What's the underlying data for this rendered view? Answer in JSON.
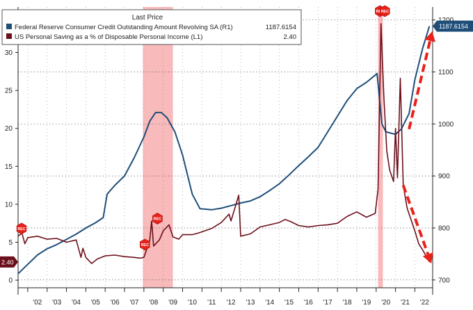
{
  "chart_data": {
    "type": "line",
    "legend": {
      "header": "Last Price",
      "placement": "top-left",
      "entries": [
        {
          "label": "Federal Reserve Consumer Credit Outstanding Amount Revolving SA  (R1)",
          "value": "1187.6154",
          "color": "#1f4e79"
        },
        {
          "label": "US Personal Saving as a % of Disposable Personal Income  (L1)",
          "value": "2.40",
          "color": "#6b0f1a"
        }
      ]
    },
    "x_ticks": [
      "'02",
      "'03",
      "'04",
      "'05",
      "'06",
      "'07",
      "'08",
      "'09",
      "'10",
      "'11",
      "'12",
      "'13",
      "'14",
      "'15",
      "'16",
      "'17",
      "'18",
      "'19",
      "'20",
      "'21",
      "'22"
    ],
    "x_range": [
      2001.5,
      2022.92
    ],
    "left_axis": {
      "ticks": [
        "0",
        "5",
        "10",
        "15",
        "20",
        "25",
        "30",
        "35"
      ],
      "range": [
        -1,
        36
      ]
    },
    "right_axis": {
      "ticks": [
        "700",
        "800",
        "900",
        "1000",
        "1100",
        "1200"
      ],
      "range": [
        685,
        1225
      ]
    },
    "recessions": [
      [
        2007.95,
        2009.5
      ],
      [
        2020.1,
        2020.35
      ]
    ],
    "rec_marker_label": "REC",
    "series": [
      {
        "name": "Federal Reserve Consumer Credit Outstanding Amount Revolving SA",
        "axis": "right",
        "color": "#1f4e79",
        "last_value_label": "1187.6154",
        "points": [
          [
            2001.5,
            712
          ],
          [
            2002.0,
            730
          ],
          [
            2002.5,
            748
          ],
          [
            2003.0,
            760
          ],
          [
            2003.5,
            768
          ],
          [
            2004.0,
            778
          ],
          [
            2004.5,
            788
          ],
          [
            2005.0,
            800
          ],
          [
            2005.5,
            810
          ],
          [
            2005.9,
            820
          ],
          [
            2006.1,
            865
          ],
          [
            2006.5,
            882
          ],
          [
            2007.0,
            900
          ],
          [
            2007.5,
            935
          ],
          [
            2008.0,
            975
          ],
          [
            2008.3,
            1005
          ],
          [
            2008.6,
            1022
          ],
          [
            2008.9,
            1022
          ],
          [
            2009.2,
            1012
          ],
          [
            2009.6,
            985
          ],
          [
            2010.0,
            940
          ],
          [
            2010.5,
            865
          ],
          [
            2010.9,
            837
          ],
          [
            2011.5,
            835
          ],
          [
            2012.0,
            838
          ],
          [
            2012.5,
            843
          ],
          [
            2013.0,
            848
          ],
          [
            2013.5,
            852
          ],
          [
            2014.0,
            860
          ],
          [
            2014.5,
            872
          ],
          [
            2015.0,
            885
          ],
          [
            2015.5,
            902
          ],
          [
            2016.0,
            920
          ],
          [
            2016.5,
            937
          ],
          [
            2017.0,
            955
          ],
          [
            2017.5,
            985
          ],
          [
            2018.0,
            1015
          ],
          [
            2018.5,
            1045
          ],
          [
            2019.0,
            1068
          ],
          [
            2019.5,
            1080
          ],
          [
            2020.05,
            1097
          ],
          [
            2020.3,
            1000
          ],
          [
            2020.5,
            985
          ],
          [
            2021.0,
            980
          ],
          [
            2021.3,
            990
          ],
          [
            2021.7,
            1020
          ],
          [
            2022.0,
            1085
          ],
          [
            2022.4,
            1145
          ],
          [
            2022.75,
            1188
          ]
        ]
      },
      {
        "name": "US Personal Saving as a % of Disposable Personal Income",
        "axis": "left",
        "color": "#6b0f1a",
        "last_value_label": "2.40",
        "points": [
          [
            2001.5,
            5.8
          ],
          [
            2001.7,
            6.2
          ],
          [
            2001.85,
            4.8
          ],
          [
            2002.0,
            5.6
          ],
          [
            2002.5,
            5.8
          ],
          [
            2003.0,
            5.4
          ],
          [
            2003.5,
            5.5
          ],
          [
            2004.0,
            5.0
          ],
          [
            2004.5,
            5.3
          ],
          [
            2004.75,
            3.0
          ],
          [
            2004.85,
            4.2
          ],
          [
            2005.0,
            3.0
          ],
          [
            2005.3,
            2.2
          ],
          [
            2005.6,
            2.8
          ],
          [
            2006.0,
            3.2
          ],
          [
            2006.5,
            3.3
          ],
          [
            2007.0,
            3.1
          ],
          [
            2007.5,
            3.0
          ],
          [
            2007.8,
            2.9
          ],
          [
            2008.0,
            3.0
          ],
          [
            2008.3,
            5.2
          ],
          [
            2008.4,
            7.8
          ],
          [
            2008.5,
            4.5
          ],
          [
            2008.8,
            5.3
          ],
          [
            2009.0,
            6.5
          ],
          [
            2009.3,
            7.3
          ],
          [
            2009.5,
            5.7
          ],
          [
            2009.8,
            5.4
          ],
          [
            2010.0,
            6.0
          ],
          [
            2010.5,
            6.0
          ],
          [
            2010.8,
            6.2
          ],
          [
            2011.5,
            6.8
          ],
          [
            2012.0,
            7.6
          ],
          [
            2012.4,
            8.7
          ],
          [
            2012.5,
            7.8
          ],
          [
            2012.9,
            11.2
          ],
          [
            2013.0,
            5.8
          ],
          [
            2013.5,
            6.1
          ],
          [
            2014.0,
            7.0
          ],
          [
            2014.5,
            7.3
          ],
          [
            2015.0,
            7.6
          ],
          [
            2015.3,
            8.0
          ],
          [
            2015.6,
            7.7
          ],
          [
            2016.0,
            7.2
          ],
          [
            2016.5,
            7.0
          ],
          [
            2017.0,
            7.2
          ],
          [
            2017.5,
            7.3
          ],
          [
            2018.0,
            7.5
          ],
          [
            2018.5,
            8.4
          ],
          [
            2019.0,
            9.0
          ],
          [
            2019.5,
            8.3
          ],
          [
            2019.95,
            8.8
          ],
          [
            2020.1,
            12.0
          ],
          [
            2020.25,
            33.8
          ],
          [
            2020.4,
            24.0
          ],
          [
            2020.55,
            17.0
          ],
          [
            2020.7,
            14.5
          ],
          [
            2020.9,
            13.0
          ],
          [
            2021.0,
            20.0
          ],
          [
            2021.1,
            13.5
          ],
          [
            2021.25,
            26.6
          ],
          [
            2021.4,
            12.5
          ],
          [
            2021.6,
            9.5
          ],
          [
            2021.8,
            8.0
          ],
          [
            2022.0,
            6.5
          ],
          [
            2022.2,
            4.8
          ],
          [
            2022.4,
            4.0
          ],
          [
            2022.6,
            3.1
          ],
          [
            2022.75,
            2.4
          ]
        ]
      }
    ],
    "annotations": [
      {
        "type": "dashed-arrow",
        "direction": "up",
        "color": "#e8221b"
      },
      {
        "type": "dashed-arrow",
        "direction": "down",
        "color": "#e8221b"
      }
    ]
  }
}
